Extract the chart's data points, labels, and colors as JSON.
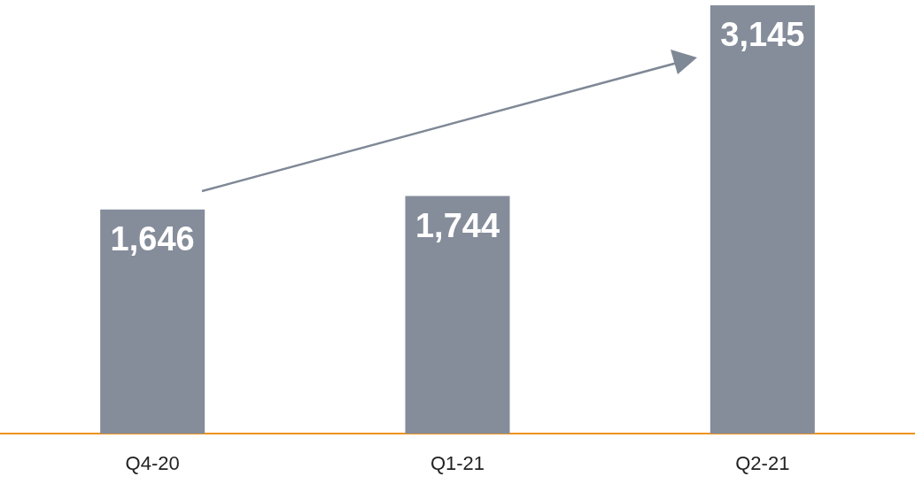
{
  "chart_data": {
    "type": "bar",
    "categories": [
      "Q4-20",
      "Q1-21",
      "Q2-21"
    ],
    "values": [
      1646,
      1744,
      3145
    ],
    "value_labels": [
      "1,646",
      "1,744",
      "3,145"
    ],
    "color": "#858d9b"
  }
}
